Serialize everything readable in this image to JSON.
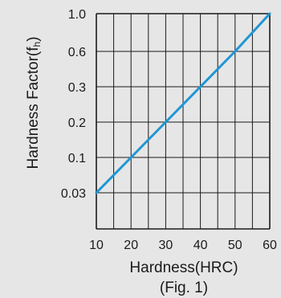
{
  "chart_data": {
    "type": "line",
    "xlabel": "Hardness(HRC)",
    "ylabel": "Hardness Factor(fh)",
    "caption": "(Fig. 1)",
    "x_ticks": [
      "10",
      "20",
      "30",
      "40",
      "50",
      "60"
    ],
    "y_ticks": [
      "0.03",
      "0.1",
      "0.2",
      "0.3",
      "0.6",
      "1.0"
    ],
    "xlim": [
      10,
      60
    ],
    "y_scale": "categorical-spaced",
    "grid": true,
    "x_grid_step": 5,
    "colors": {
      "line": "#1e96d6",
      "axis": "#1a1a1a",
      "background": "#e6e6e6"
    },
    "series": [
      {
        "x": [
          10,
          20,
          30,
          40,
          50,
          55,
          60
        ],
        "y": [
          0.03,
          0.1,
          0.2,
          0.3,
          0.6,
          0.8,
          1.0
        ]
      }
    ]
  }
}
